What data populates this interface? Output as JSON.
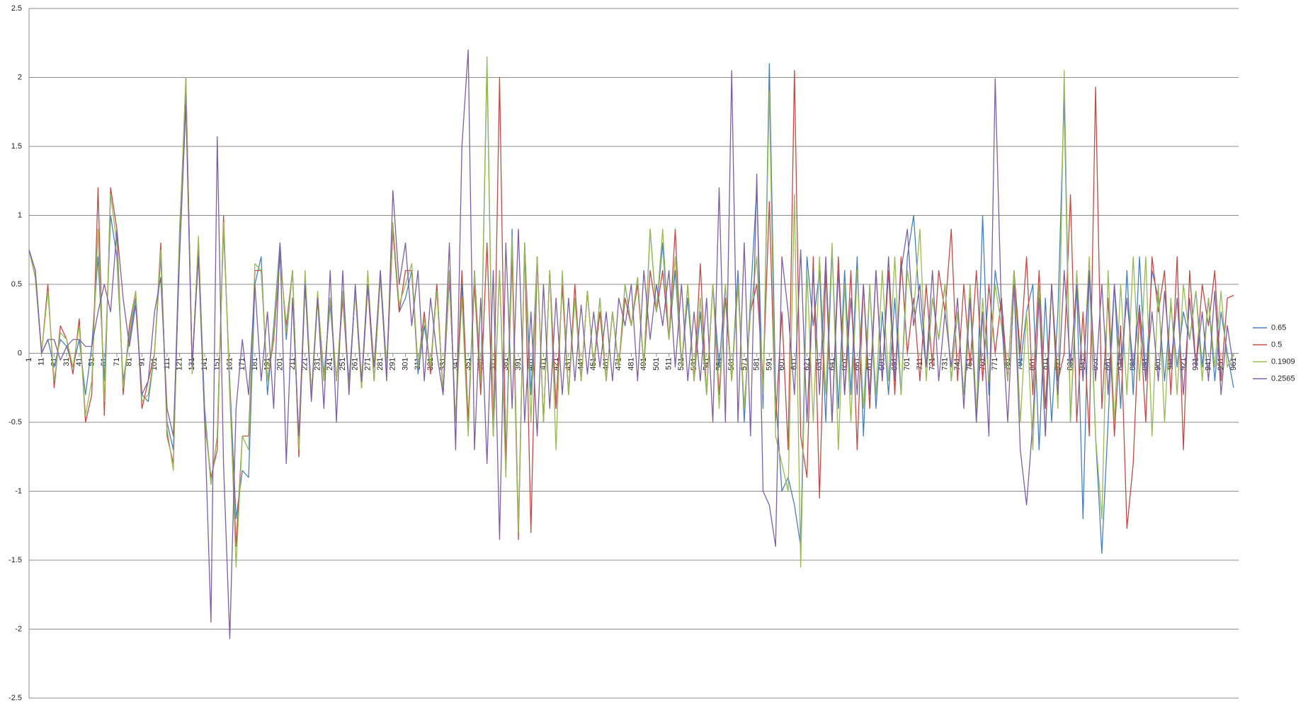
{
  "chart_data": {
    "type": "line",
    "x": [
      1,
      6,
      11,
      16,
      21,
      26,
      31,
      36,
      41,
      46,
      51,
      56,
      61,
      66,
      71,
      76,
      81,
      86,
      91,
      96,
      101,
      106,
      111,
      116,
      121,
      126,
      131,
      136,
      141,
      146,
      151,
      156,
      161,
      166,
      171,
      176,
      181,
      186,
      191,
      196,
      201,
      206,
      211,
      216,
      221,
      226,
      231,
      236,
      241,
      246,
      251,
      256,
      261,
      266,
      271,
      276,
      281,
      286,
      291,
      296,
      301,
      306,
      311,
      316,
      321,
      326,
      331,
      336,
      341,
      346,
      351,
      356,
      361,
      366,
      371,
      376,
      381,
      386,
      391,
      396,
      401,
      406,
      411,
      416,
      421,
      426,
      431,
      436,
      441,
      446,
      451,
      456,
      461,
      466,
      471,
      476,
      481,
      486,
      491,
      496,
      501,
      506,
      511,
      516,
      521,
      526,
      531,
      536,
      541,
      546,
      551,
      556,
      561,
      566,
      571,
      576,
      581,
      586,
      591,
      596,
      601,
      606,
      611,
      616,
      621,
      626,
      631,
      636,
      641,
      646,
      651,
      656,
      661,
      666,
      671,
      676,
      681,
      686,
      691,
      696,
      701,
      706,
      711,
      716,
      721,
      726,
      731,
      736,
      741,
      746,
      751,
      756,
      761,
      766,
      771,
      776,
      781,
      786,
      791,
      796,
      801,
      806,
      811,
      816,
      821,
      826,
      831,
      836,
      841,
      846,
      851,
      856,
      861,
      866,
      871,
      876,
      881,
      886,
      891,
      896,
      901,
      906,
      911,
      916,
      921,
      926,
      931,
      936,
      941,
      946,
      951,
      956,
      961
    ],
    "xlim": [
      1,
      965
    ],
    "xticks": [
      1,
      11,
      21,
      31,
      41,
      51,
      61,
      71,
      81,
      91,
      101,
      111,
      121,
      131,
      141,
      151,
      161,
      171,
      181,
      191,
      201,
      211,
      221,
      231,
      241,
      251,
      261,
      271,
      281,
      291,
      301,
      311,
      321,
      331,
      341,
      351,
      361,
      371,
      381,
      391,
      401,
      411,
      421,
      431,
      441,
      451,
      461,
      471,
      481,
      491,
      501,
      511,
      521,
      531,
      541,
      551,
      561,
      571,
      581,
      591,
      601,
      611,
      621,
      631,
      641,
      651,
      661,
      671,
      681,
      691,
      701,
      711,
      721,
      731,
      741,
      751,
      761,
      771,
      781,
      791,
      801,
      811,
      821,
      831,
      841,
      851,
      861,
      871,
      881,
      891,
      901,
      911,
      921,
      931,
      941,
      951,
      961
    ],
    "ylim": [
      -2.5,
      2.5
    ],
    "yticks": [
      -2.5,
      -2,
      -1.5,
      -1,
      -0.5,
      0,
      0.5,
      1,
      1.5,
      2,
      2.5
    ],
    "grid": true,
    "legend": "right",
    "series": [
      {
        "name": "0.65",
        "color": "#4a7ebb",
        "values": [
          0.75,
          0.55,
          0.0,
          0.1,
          -0.1,
          0.1,
          0.05,
          -0.1,
          0.1,
          -0.3,
          0.05,
          0.7,
          -0.2,
          1.0,
          0.7,
          -0.2,
          0.1,
          0.4,
          -0.3,
          -0.35,
          0.0,
          0.7,
          -0.5,
          -0.7,
          0.9,
          1.9,
          -0.1,
          0.8,
          -0.4,
          -0.95,
          -0.6,
          0.9,
          -0.2,
          -1.2,
          -0.85,
          -0.9,
          0.5,
          0.7,
          -0.3,
          0.2,
          0.8,
          0.1,
          0.6,
          -0.7,
          0.5,
          -0.3,
          0.4,
          -0.15,
          0.35,
          -0.2,
          0.4,
          -0.2,
          0.45,
          -0.25,
          0.5,
          -0.2,
          0.6,
          -0.1,
          0.9,
          0.3,
          0.4,
          0.6,
          -0.15,
          0.2,
          -0.1,
          0.5,
          -0.3,
          0.55,
          -0.5,
          0.5,
          -0.5,
          0.6,
          -0.2,
          2.1,
          -0.6,
          0.6,
          -0.8,
          0.9,
          -1.3,
          0.8,
          -0.3,
          0.7,
          -0.5,
          0.6,
          -0.4,
          0.5,
          -0.3,
          0.4,
          -0.2,
          0.45,
          -0.1,
          0.4,
          -0.2,
          0.3,
          -0.1,
          0.5,
          0.2,
          0.55,
          -0.1,
          0.9,
          0.3,
          0.8,
          0.1,
          0.6,
          -0.1,
          0.4,
          -0.2,
          0.3,
          -0.3,
          0.5,
          -0.1,
          0.5,
          -0.2,
          0.6,
          -0.5,
          0.4,
          1.2,
          -0.4,
          2.1,
          -0.3,
          -1.0,
          -0.9,
          -1.1,
          -1.4,
          0.7,
          0.2,
          0.6,
          -0.5,
          0.75,
          -0.4,
          0.6,
          -0.3,
          0.7,
          -0.6,
          0.5,
          -0.4,
          0.3,
          -0.3,
          0.4,
          -0.3,
          0.7,
          1.0,
          0.3,
          -0.1,
          0.4,
          0.1,
          0.5,
          -0.2,
          0.3,
          -0.3,
          0.5,
          -0.5,
          1.0,
          -0.3,
          0.6,
          0.3,
          -0.2,
          0.6,
          -0.1,
          0.3,
          0.5,
          -0.7,
          0.4,
          -0.5,
          0.3,
          1.85,
          -0.5,
          0.5,
          -1.2,
          0.6,
          -0.6,
          -1.45,
          -0.5,
          0.5,
          -0.4,
          0.6,
          -0.3,
          0.7,
          -0.2,
          0.6,
          0.4,
          -0.2,
          0.35,
          -0.1,
          0.3,
          0.1,
          0.45,
          -0.1,
          0.4,
          -0.2,
          0.3,
          0.0,
          -0.25
        ]
      },
      {
        "name": "0.5",
        "color": "#be4b48",
        "values": [
          0.75,
          0.6,
          0.0,
          0.5,
          -0.25,
          0.2,
          0.1,
          -0.15,
          0.25,
          -0.5,
          -0.3,
          1.2,
          -0.45,
          1.2,
          0.9,
          -0.3,
          0.2,
          0.45,
          -0.4,
          -0.2,
          0.0,
          0.8,
          -0.6,
          -0.8,
          0.8,
          2.0,
          -0.1,
          0.8,
          -0.5,
          -0.9,
          -0.7,
          1.0,
          -0.3,
          -1.4,
          -0.6,
          -0.6,
          0.6,
          0.6,
          -0.2,
          0.1,
          0.7,
          0.2,
          0.6,
          -0.75,
          0.55,
          -0.3,
          0.4,
          -0.2,
          0.4,
          -0.2,
          0.4,
          -0.25,
          0.45,
          -0.25,
          0.5,
          -0.2,
          0.55,
          -0.15,
          0.9,
          0.3,
          0.6,
          0.6,
          -0.1,
          0.3,
          -0.15,
          0.5,
          -0.3,
          0.55,
          -0.5,
          0.6,
          -0.5,
          0.5,
          -0.3,
          0.8,
          -0.6,
          2.0,
          -0.8,
          0.7,
          -1.35,
          0.8,
          -1.3,
          0.7,
          -0.5,
          0.6,
          -0.4,
          0.5,
          -0.3,
          0.5,
          -0.2,
          0.45,
          -0.1,
          0.3,
          -0.2,
          0.3,
          -0.1,
          0.4,
          0.2,
          0.5,
          -0.1,
          0.6,
          0.3,
          0.6,
          0.1,
          0.9,
          -0.1,
          0.5,
          -0.2,
          0.65,
          -0.3,
          0.5,
          -0.3,
          0.4,
          -0.2,
          0.5,
          -0.4,
          0.3,
          0.5,
          -0.2,
          1.1,
          -0.5,
          0.3,
          -0.7,
          2.05,
          -0.6,
          -0.9,
          0.7,
          -1.05,
          0.6,
          -0.5,
          0.7,
          -0.3,
          0.6,
          -0.7,
          0.5,
          -0.4,
          0.6,
          -0.2,
          0.6,
          -0.3,
          0.7,
          0.0,
          0.4,
          -0.2,
          0.5,
          -0.1,
          0.6,
          0.3,
          0.9,
          -0.2,
          0.5,
          -0.1,
          0.6,
          -0.2,
          0.5,
          0.0,
          0.4,
          -0.2,
          0.6,
          0.0,
          0.7,
          -0.3,
          0.6,
          -0.4,
          0.5,
          -0.2,
          0.0,
          1.15,
          -0.5,
          0.3,
          -0.6,
          1.93,
          -0.4,
          0.4,
          -0.6,
          0.2,
          -1.27,
          -0.8,
          0.3,
          -0.5,
          0.7,
          0.3,
          0.6,
          -0.3,
          0.7,
          -0.7,
          0.6,
          -0.1,
          0.5,
          0.2,
          0.6,
          -0.2,
          0.4,
          0.42
        ]
      },
      {
        "name": "0.1909",
        "color": "#98b954",
        "values": [
          0.75,
          0.55,
          0.0,
          0.45,
          -0.2,
          0.15,
          0.1,
          -0.1,
          0.2,
          -0.45,
          -0.2,
          0.9,
          -0.35,
          1.15,
          0.8,
          -0.25,
          0.15,
          0.45,
          -0.35,
          -0.3,
          0.0,
          0.75,
          -0.55,
          -0.85,
          0.85,
          2.0,
          -0.15,
          0.85,
          -0.45,
          -0.95,
          -0.6,
          0.95,
          -0.25,
          -1.55,
          -0.6,
          -0.7,
          0.65,
          0.6,
          -0.2,
          0.15,
          0.75,
          0.15,
          0.6,
          -0.7,
          0.6,
          -0.3,
          0.45,
          -0.2,
          0.4,
          -0.2,
          0.45,
          -0.25,
          0.45,
          -0.25,
          0.6,
          -0.2,
          0.55,
          -0.1,
          0.95,
          0.35,
          0.5,
          0.65,
          -0.1,
          0.25,
          -0.1,
          0.45,
          -0.3,
          0.6,
          -0.5,
          0.4,
          -0.6,
          0.6,
          -0.2,
          2.15,
          -0.6,
          0.6,
          -0.9,
          0.85,
          -1.3,
          0.8,
          -0.5,
          0.7,
          -0.5,
          0.6,
          -0.7,
          0.6,
          -0.3,
          0.4,
          -0.2,
          0.45,
          -0.1,
          0.4,
          -0.2,
          0.3,
          -0.1,
          0.5,
          0.2,
          0.55,
          -0.1,
          0.9,
          0.3,
          0.9,
          0.1,
          0.7,
          -0.1,
          0.5,
          -0.2,
          0.4,
          -0.3,
          0.5,
          -0.4,
          0.5,
          -0.2,
          0.5,
          -0.4,
          0.3,
          0.7,
          -0.3,
          1.9,
          -0.6,
          -0.8,
          -1.0,
          1.15,
          -1.55,
          0.6,
          -0.5,
          0.7,
          -0.3,
          0.8,
          -0.7,
          0.5,
          -0.5,
          0.6,
          -0.4,
          0.5,
          -0.3,
          0.6,
          -0.2,
          0.7,
          -0.3,
          0.6,
          0.3,
          0.9,
          -0.2,
          0.4,
          0.1,
          0.5,
          -0.2,
          0.3,
          -0.3,
          0.5,
          -0.4,
          0.4,
          -0.2,
          0.5,
          0.2,
          -0.2,
          0.6,
          -0.5,
          0.3,
          -0.7,
          0.5,
          -0.6,
          0.5,
          -0.4,
          2.05,
          -0.5,
          0.6,
          -0.2,
          0.7,
          -0.6,
          -1.2,
          0.6,
          -0.5,
          0.5,
          -0.3,
          0.7,
          -0.2,
          0.7,
          -0.6,
          0.5,
          -0.5,
          0.4,
          -0.3,
          0.5,
          0.1,
          0.45,
          -0.2,
          0.4,
          -0.1,
          0.45,
          -0.1,
          0.0
        ]
      },
      {
        "name": "0.2565",
        "color": "#7d60a0",
        "values": [
          0.75,
          0.6,
          0.0,
          0.1,
          0.1,
          -0.05,
          0.05,
          0.1,
          0.1,
          0.05,
          0.05,
          0.3,
          0.5,
          0.3,
          0.9,
          0.4,
          0.05,
          0.35,
          -0.3,
          -0.2,
          0.3,
          0.55,
          -0.4,
          -0.6,
          0.7,
          1.8,
          -0.1,
          0.7,
          -0.5,
          -1.95,
          1.57,
          -0.8,
          -2.07,
          -0.4,
          0.1,
          -0.3,
          0.5,
          -0.2,
          0.3,
          -0.4,
          0.8,
          -0.8,
          0.4,
          -0.6,
          0.5,
          -0.35,
          0.4,
          -0.4,
          0.6,
          -0.5,
          0.6,
          -0.3,
          0.5,
          -0.2,
          0.5,
          -0.1,
          0.6,
          -0.2,
          1.18,
          0.5,
          0.8,
          0.2,
          0.6,
          -0.2,
          0.4,
          0.0,
          -0.3,
          0.8,
          -0.7,
          1.5,
          2.2,
          -0.7,
          0.4,
          -0.8,
          0.6,
          -1.35,
          0.8,
          -0.4,
          0.9,
          -0.5,
          0.3,
          -0.6,
          0.5,
          -0.4,
          0.4,
          -0.3,
          0.4,
          -0.2,
          0.35,
          -0.15,
          0.3,
          -0.1,
          0.3,
          -0.2,
          0.4,
          0.2,
          0.5,
          -0.2,
          0.6,
          0.1,
          0.5,
          0.2,
          0.6,
          -0.1,
          0.5,
          -0.2,
          0.3,
          -0.2,
          0.4,
          -0.5,
          1.2,
          -0.5,
          2.05,
          -0.5,
          0.8,
          -0.6,
          1.3,
          -1.0,
          -1.1,
          -1.4,
          0.7,
          0.3,
          -0.3,
          0.75,
          -0.5,
          0.6,
          -0.3,
          0.7,
          -0.5,
          0.6,
          -0.3,
          0.4,
          -0.3,
          0.5,
          -0.3,
          0.6,
          -0.2,
          0.7,
          -0.2,
          0.6,
          0.9,
          0.2,
          0.5,
          -0.1,
          0.6,
          -0.2,
          0.3,
          -0.1,
          0.4,
          -0.4,
          0.4,
          -0.5,
          0.3,
          -0.6,
          1.99,
          0.3,
          -0.5,
          0.5,
          -0.7,
          -1.1,
          -0.5,
          0.4,
          -0.6,
          0.5,
          -0.3,
          0.6,
          -0.1,
          0.5,
          -0.2,
          0.6,
          -0.2,
          0.5,
          -0.3,
          0.5,
          -0.1,
          0.4,
          -0.1,
          0.35,
          -0.2,
          0.3,
          -0.2,
          0.45,
          -0.1,
          0.4,
          -0.3,
          0.4,
          -0.1,
          0.3,
          -0.2,
          0.45,
          -0.3,
          0.2,
          -0.1
        ]
      }
    ]
  }
}
